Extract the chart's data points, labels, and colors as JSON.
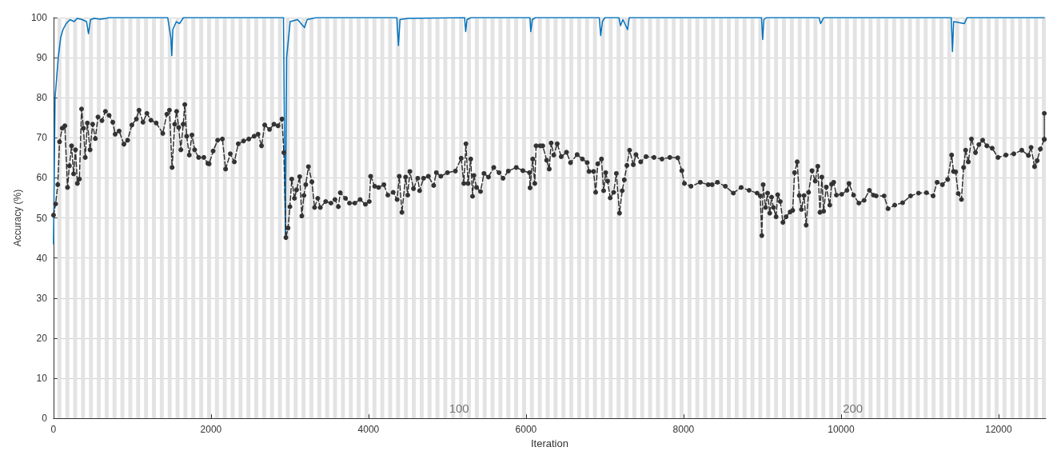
{
  "chart_data": {
    "type": "line",
    "xlabel": "Iteration",
    "ylabel": "Accuracy (%)",
    "xlim": [
      0,
      12600
    ],
    "xticks": [
      0,
      2000,
      4000,
      6000,
      8000,
      10000,
      12000
    ],
    "ylim": [
      0,
      100
    ],
    "yticks": [
      0,
      10,
      20,
      30,
      40,
      50,
      60,
      70,
      80,
      90,
      100
    ],
    "grid": "y",
    "series": [
      {
        "color": "#0072bd",
        "marker": "none",
        "line_style": "solid",
        "x": [
          0,
          20,
          40,
          60,
          91,
          120,
          161,
          210,
          262,
          300,
          363,
          420,
          444,
          470,
          514,
          600,
          666,
          700,
          1450,
          1490,
          1502,
          1515,
          1560,
          1600,
          1650,
          2920,
          2944,
          2960,
          3005,
          3100,
          3187,
          3220,
          3338,
          4360,
          4380,
          4400,
          4500,
          5220,
          5234,
          5250,
          5300,
          6050,
          6060,
          6080,
          6120,
          6930,
          6948,
          6970,
          7000,
          7180,
          7200,
          7230,
          7290,
          7310,
          8990,
          9005,
          9020,
          9050,
          9720,
          9741,
          9780,
          11400,
          11415,
          11430,
          11566,
          11600,
          12581
        ],
        "values": [
          43.5,
          80,
          85,
          90,
          95,
          97,
          98.5,
          99.5,
          99,
          99.8,
          99.5,
          99,
          96,
          99.5,
          99.8,
          99.6,
          99.8,
          100,
          100,
          95,
          90.5,
          97,
          99,
          98.5,
          100,
          100,
          45,
          90,
          99,
          99.5,
          97.5,
          99.5,
          100,
          100,
          93,
          99.5,
          99.8,
          100,
          96.5,
          99.5,
          100,
          100,
          96.5,
          99.5,
          100,
          100,
          95.5,
          99,
          100,
          100,
          98,
          99.5,
          97,
          100,
          100,
          94.5,
          99.5,
          100,
          100,
          98.5,
          100,
          100,
          91.5,
          99,
          98.5,
          100,
          100
        ]
      },
      {
        "color": "#333333",
        "marker": "circle",
        "line_style": "dashed",
        "x": [
          0,
          27,
          54,
          77,
          111,
          144,
          178,
          202,
          229,
          255,
          279,
          303,
          329,
          356,
          380,
          403,
          430,
          464,
          497,
          531,
          565,
          615,
          659,
          706,
          753,
          783,
          833,
          894,
          941,
          995,
          1052,
          1086,
          1136,
          1186,
          1237,
          1304,
          1388,
          1439,
          1472,
          1506,
          1539,
          1563,
          1590,
          1617,
          1647,
          1667,
          1691,
          1724,
          1758,
          1792,
          1842,
          1909,
          1960,
          1976,
          2027,
          2084,
          2145,
          2185,
          2245,
          2296,
          2346,
          2413,
          2480,
          2548,
          2598,
          2642,
          2682,
          2743,
          2800,
          2851,
          2901,
          2925,
          2951,
          2978,
          3002,
          3025,
          3059,
          3086,
          3126,
          3153,
          3180,
          3203,
          3237,
          3281,
          3315,
          3355,
          3388,
          3456,
          3523,
          3574,
          3617,
          3641,
          3708,
          3758,
          3826,
          3893,
          3960,
          4010,
          4027,
          4078,
          4128,
          4195,
          4245,
          4313,
          4363,
          4390,
          4424,
          4471,
          4498,
          4525,
          4571,
          4625,
          4649,
          4699,
          4760,
          4827,
          4861,
          4918,
          5002,
          5103,
          5177,
          5210,
          5237,
          5264,
          5298,
          5321,
          5338,
          5372,
          5422,
          5466,
          5523,
          5590,
          5657,
          5708,
          5775,
          5876,
          5960,
          6044,
          6051,
          6085,
          6111,
          6128,
          6179,
          6212,
          6262,
          6295,
          6319,
          6352,
          6396,
          6447,
          6514,
          6565,
          6649,
          6716,
          6777,
          6800,
          6858,
          6884,
          6911,
          6958,
          6985,
          7012,
          7036,
          7069,
          7113,
          7147,
          7187,
          7221,
          7248,
          7281,
          7315,
          7362,
          7396,
          7456,
          7524,
          7625,
          7726,
          7826,
          7927,
          7978,
          8011,
          8095,
          8213,
          8314,
          8363,
          8430,
          8531,
          8632,
          8732,
          8833,
          8934,
          8974,
          8994,
          9011,
          9041,
          9067,
          9095,
          9118,
          9141,
          9175,
          9195,
          9229,
          9262,
          9302,
          9353,
          9386,
          9410,
          9443,
          9470,
          9497,
          9530,
          9557,
          9588,
          9631,
          9672,
          9705,
          9732,
          9756,
          9779,
          9813,
          9857,
          9880,
          9907,
          9941,
          10008,
          10075,
          10101,
          10159,
          10226,
          10293,
          10360,
          10411,
          10446,
          10547,
          10597,
          10682,
          10782,
          10883,
          10984,
          11085,
          11169,
          11220,
          11287,
          11354,
          11404,
          11428,
          11455,
          11488,
          11529,
          11556,
          11582,
          11616,
          11656,
          11707,
          11750,
          11798,
          11851,
          11919,
          11993,
          12093,
          12194,
          12295,
          12379,
          12413,
          12457,
          12490,
          12531,
          12581
        ],
        "values": [
          50.7,
          53.5,
          58.3,
          69,
          72.4,
          73,
          57.6,
          63,
          68,
          61,
          67,
          58.6,
          59.7,
          77.2,
          72.4,
          65.1,
          73.7,
          67,
          73.4,
          69.8,
          75.2,
          74.3,
          76.6,
          75.6,
          73.9,
          70.9,
          71.7,
          68.4,
          69.4,
          73.2,
          74.7,
          76.9,
          73.9,
          76.1,
          74.4,
          73.7,
          71.1,
          75.9,
          76.9,
          62.6,
          73.4,
          76.6,
          72.6,
          67,
          73.4,
          78.3,
          70.4,
          65.7,
          70.7,
          67,
          65.1,
          65.1,
          63.6,
          63.5,
          66.7,
          69.4,
          69.7,
          62.2,
          66,
          64,
          68.5,
          69.2,
          69.7,
          70.4,
          70.9,
          68,
          73.2,
          72.1,
          73.4,
          73,
          74.7,
          66.3,
          45.1,
          47.5,
          52.8,
          59.7,
          54.9,
          57,
          60.3,
          50.5,
          55.6,
          58.3,
          62.8,
          59,
          52.6,
          54.9,
          52.6,
          54.1,
          53.7,
          54.6,
          52.8,
          56.3,
          54.9,
          53.7,
          53.7,
          54.6,
          53.4,
          54.1,
          60.4,
          57.9,
          57.6,
          58.3,
          55.7,
          56.4,
          54.6,
          60.4,
          51.4,
          60.2,
          55.7,
          61.6,
          57.3,
          59.9,
          56.8,
          59.9,
          60.4,
          58.1,
          61.3,
          60.4,
          61.3,
          61.7,
          64.9,
          58.6,
          68.5,
          58.6,
          64.7,
          55.4,
          60.6,
          57.6,
          56.6,
          61.1,
          60.2,
          62.6,
          61.3,
          59.9,
          61.7,
          62.6,
          61.8,
          61.3,
          57.5,
          64.7,
          58.6,
          68,
          68,
          68,
          64.4,
          62.2,
          68.7,
          65.7,
          68.5,
          65.3,
          66.4,
          63.8,
          65.8,
          64.7,
          63.8,
          61.6,
          61.6,
          56.4,
          63.5,
          64.7,
          56.8,
          61.3,
          59.2,
          55,
          56.4,
          61.1,
          51.2,
          56.8,
          59.5,
          63.1,
          66.9,
          63.3,
          65.8,
          64,
          65.3,
          65.1,
          64.7,
          65.1,
          65,
          61.8,
          58.6,
          57.9,
          58.9,
          58.3,
          58.3,
          58.9,
          57.9,
          56.2,
          57.6,
          56.9,
          56.2,
          55.5,
          45.6,
          58.3,
          52.6,
          56.2,
          51.2,
          55.2,
          52.6,
          50.3,
          55.8,
          54.1,
          48.9,
          50.3,
          51.5,
          51.9,
          61.3,
          64,
          55.6,
          52.1,
          55.6,
          48.2,
          56.4,
          61.8,
          59.2,
          62.9,
          51.4,
          60.2,
          51.7,
          57.7,
          53.2,
          58.4,
          58.9,
          55.7,
          55.9,
          56.9,
          58.6,
          55.7,
          53.7,
          54.4,
          56.9,
          55.7,
          55.5,
          55.5,
          52.3,
          53.2,
          53.8,
          55.5,
          56.2,
          56.3,
          55.5,
          58.9,
          58.3,
          59.6,
          65.7,
          61.6,
          61.5,
          56.1,
          54.6,
          62.6,
          66.9,
          64,
          69.7,
          66.3,
          68.3,
          69.4,
          68,
          67.4,
          65.1,
          65.7,
          66,
          66.9,
          65.6,
          67.6,
          62.8,
          64.3,
          67.2,
          69.6
        ]
      },
      {
        "color": "#333333",
        "marker": "circle",
        "line_style": "dotted",
        "x": [
          12581,
          12581
        ],
        "values": [
          69.6,
          76.1
        ]
      }
    ],
    "annotations": [
      {
        "text": "100",
        "x": 5150,
        "y": 2.5
      },
      {
        "text": "200",
        "x": 10150,
        "y": 2.5
      }
    ],
    "bands": [
      {
        "axis": "x",
        "from": 50,
        "to": 100
      },
      {
        "axis": "x",
        "from": 150,
        "to": 200
      },
      {
        "axis": "x",
        "from": 250,
        "to": 300
      },
      {
        "axis": "x",
        "from": 350,
        "to": 400
      },
      {
        "axis": "x",
        "from": 450,
        "to": 500
      },
      {
        "axis": "x",
        "from": 550,
        "to": 600
      },
      {
        "axis": "x",
        "from": 650,
        "to": 700
      },
      {
        "axis": "x",
        "from": 750,
        "to": 800
      },
      {
        "axis": "x",
        "from": 850,
        "to": 900
      },
      {
        "axis": "x",
        "from": 950,
        "to": 1000
      },
      {
        "axis": "x",
        "from": 1050,
        "to": 1100
      },
      {
        "axis": "x",
        "from": 1150,
        "to": 1200
      },
      {
        "axis": "x",
        "from": 1250,
        "to": 1300
      },
      {
        "axis": "x",
        "from": 1350,
        "to": 1400
      },
      {
        "axis": "x",
        "from": 1450,
        "to": 1500
      },
      {
        "axis": "x",
        "from": 1550,
        "to": 1600
      },
      {
        "axis": "x",
        "from": 1650,
        "to": 1700
      },
      {
        "axis": "x",
        "from": 1750,
        "to": 1800
      },
      {
        "axis": "x",
        "from": 1850,
        "to": 1900
      },
      {
        "axis": "x",
        "from": 1950,
        "to": 2000
      },
      {
        "axis": "x",
        "from": 2050,
        "to": 2100
      },
      {
        "axis": "x",
        "from": 2150,
        "to": 2200
      },
      {
        "axis": "x",
        "from": 2250,
        "to": 2300
      },
      {
        "axis": "x",
        "from": 2350,
        "to": 2400
      },
      {
        "axis": "x",
        "from": 2450,
        "to": 2500
      },
      {
        "axis": "x",
        "from": 2550,
        "to": 2600
      },
      {
        "axis": "x",
        "from": 2650,
        "to": 2700
      },
      {
        "axis": "x",
        "from": 2750,
        "to": 2800
      },
      {
        "axis": "x",
        "from": 2850,
        "to": 2900
      },
      {
        "axis": "x",
        "from": 2950,
        "to": 3000
      },
      {
        "axis": "x",
        "from": 3050,
        "to": 3100
      },
      {
        "axis": "x",
        "from": 3150,
        "to": 3200
      },
      {
        "axis": "x",
        "from": 3250,
        "to": 3300
      },
      {
        "axis": "x",
        "from": 3350,
        "to": 3400
      },
      {
        "axis": "x",
        "from": 3450,
        "to": 3500
      },
      {
        "axis": "x",
        "from": 3550,
        "to": 3600
      },
      {
        "axis": "x",
        "from": 3650,
        "to": 3700
      },
      {
        "axis": "x",
        "from": 3750,
        "to": 3800
      },
      {
        "axis": "x",
        "from": 3850,
        "to": 3900
      },
      {
        "axis": "x",
        "from": 3950,
        "to": 4000
      },
      {
        "axis": "x",
        "from": 4050,
        "to": 4100
      },
      {
        "axis": "x",
        "from": 4150,
        "to": 4200
      },
      {
        "axis": "x",
        "from": 4250,
        "to": 4300
      },
      {
        "axis": "x",
        "from": 4350,
        "to": 4400
      },
      {
        "axis": "x",
        "from": 4450,
        "to": 4500
      },
      {
        "axis": "x",
        "from": 4550,
        "to": 4600
      },
      {
        "axis": "x",
        "from": 4650,
        "to": 4700
      },
      {
        "axis": "x",
        "from": 4750,
        "to": 4800
      },
      {
        "axis": "x",
        "from": 4850,
        "to": 4900
      },
      {
        "axis": "x",
        "from": 4950,
        "to": 5000
      },
      {
        "axis": "x",
        "from": 5050,
        "to": 5100
      },
      {
        "axis": "x",
        "from": 5150,
        "to": 5200
      },
      {
        "axis": "x",
        "from": 5250,
        "to": 5300
      },
      {
        "axis": "x",
        "from": 5350,
        "to": 5400
      },
      {
        "axis": "x",
        "from": 5450,
        "to": 5500
      },
      {
        "axis": "x",
        "from": 5550,
        "to": 5600
      },
      {
        "axis": "x",
        "from": 5650,
        "to": 5700
      },
      {
        "axis": "x",
        "from": 5750,
        "to": 5800
      },
      {
        "axis": "x",
        "from": 5850,
        "to": 5900
      },
      {
        "axis": "x",
        "from": 5950,
        "to": 6000
      },
      {
        "axis": "x",
        "from": 6050,
        "to": 6100
      },
      {
        "axis": "x",
        "from": 6150,
        "to": 6200
      },
      {
        "axis": "x",
        "from": 6250,
        "to": 6300
      },
      {
        "axis": "x",
        "from": 6350,
        "to": 6400
      },
      {
        "axis": "x",
        "from": 6450,
        "to": 6500
      },
      {
        "axis": "x",
        "from": 6550,
        "to": 6600
      },
      {
        "axis": "x",
        "from": 6650,
        "to": 6700
      },
      {
        "axis": "x",
        "from": 6750,
        "to": 6800
      },
      {
        "axis": "x",
        "from": 6850,
        "to": 6900
      },
      {
        "axis": "x",
        "from": 6950,
        "to": 7000
      },
      {
        "axis": "x",
        "from": 7050,
        "to": 7100
      },
      {
        "axis": "x",
        "from": 7150,
        "to": 7200
      },
      {
        "axis": "x",
        "from": 7250,
        "to": 7300
      },
      {
        "axis": "x",
        "from": 7350,
        "to": 7400
      },
      {
        "axis": "x",
        "from": 7450,
        "to": 7500
      },
      {
        "axis": "x",
        "from": 7550,
        "to": 7600
      },
      {
        "axis": "x",
        "from": 7650,
        "to": 7700
      },
      {
        "axis": "x",
        "from": 7750,
        "to": 7800
      },
      {
        "axis": "x",
        "from": 7850,
        "to": 7900
      },
      {
        "axis": "x",
        "from": 7950,
        "to": 8000
      },
      {
        "axis": "x",
        "from": 8050,
        "to": 8100
      },
      {
        "axis": "x",
        "from": 8150,
        "to": 8200
      },
      {
        "axis": "x",
        "from": 8250,
        "to": 8300
      },
      {
        "axis": "x",
        "from": 8350,
        "to": 8400
      },
      {
        "axis": "x",
        "from": 8450,
        "to": 8500
      },
      {
        "axis": "x",
        "from": 8550,
        "to": 8600
      },
      {
        "axis": "x",
        "from": 8650,
        "to": 8700
      },
      {
        "axis": "x",
        "from": 8750,
        "to": 8800
      },
      {
        "axis": "x",
        "from": 8850,
        "to": 8900
      },
      {
        "axis": "x",
        "from": 8950,
        "to": 9000
      },
      {
        "axis": "x",
        "from": 9050,
        "to": 9100
      },
      {
        "axis": "x",
        "from": 9150,
        "to": 9200
      },
      {
        "axis": "x",
        "from": 9250,
        "to": 9300
      },
      {
        "axis": "x",
        "from": 9350,
        "to": 9400
      },
      {
        "axis": "x",
        "from": 9450,
        "to": 9500
      },
      {
        "axis": "x",
        "from": 9550,
        "to": 9600
      },
      {
        "axis": "x",
        "from": 9650,
        "to": 9700
      },
      {
        "axis": "x",
        "from": 9750,
        "to": 9800
      },
      {
        "axis": "x",
        "from": 9850,
        "to": 9900
      },
      {
        "axis": "x",
        "from": 9950,
        "to": 10000
      },
      {
        "axis": "x",
        "from": 10050,
        "to": 10100
      },
      {
        "axis": "x",
        "from": 10150,
        "to": 10200
      },
      {
        "axis": "x",
        "from": 10250,
        "to": 10300
      },
      {
        "axis": "x",
        "from": 10350,
        "to": 10400
      },
      {
        "axis": "x",
        "from": 10450,
        "to": 10500
      },
      {
        "axis": "x",
        "from": 10550,
        "to": 10600
      },
      {
        "axis": "x",
        "from": 10650,
        "to": 10700
      },
      {
        "axis": "x",
        "from": 10750,
        "to": 10800
      },
      {
        "axis": "x",
        "from": 10850,
        "to": 10900
      },
      {
        "axis": "x",
        "from": 10950,
        "to": 11000
      },
      {
        "axis": "x",
        "from": 11050,
        "to": 11100
      },
      {
        "axis": "x",
        "from": 11150,
        "to": 11200
      },
      {
        "axis": "x",
        "from": 11250,
        "to": 11300
      },
      {
        "axis": "x",
        "from": 11350,
        "to": 11400
      },
      {
        "axis": "x",
        "from": 11450,
        "to": 11500
      },
      {
        "axis": "x",
        "from": 11550,
        "to": 11600
      },
      {
        "axis": "x",
        "from": 11650,
        "to": 11700
      },
      {
        "axis": "x",
        "from": 11750,
        "to": 11800
      },
      {
        "axis": "x",
        "from": 11850,
        "to": 11900
      },
      {
        "axis": "x",
        "from": 11950,
        "to": 12000
      },
      {
        "axis": "x",
        "from": 12050,
        "to": 12100
      },
      {
        "axis": "x",
        "from": 12150,
        "to": 12200
      },
      {
        "axis": "x",
        "from": 12250,
        "to": 12300
      },
      {
        "axis": "x",
        "from": 12350,
        "to": 12400
      },
      {
        "axis": "x",
        "from": 12450,
        "to": 12500
      },
      {
        "axis": "x",
        "from": 12550,
        "to": 12600
      }
    ]
  }
}
